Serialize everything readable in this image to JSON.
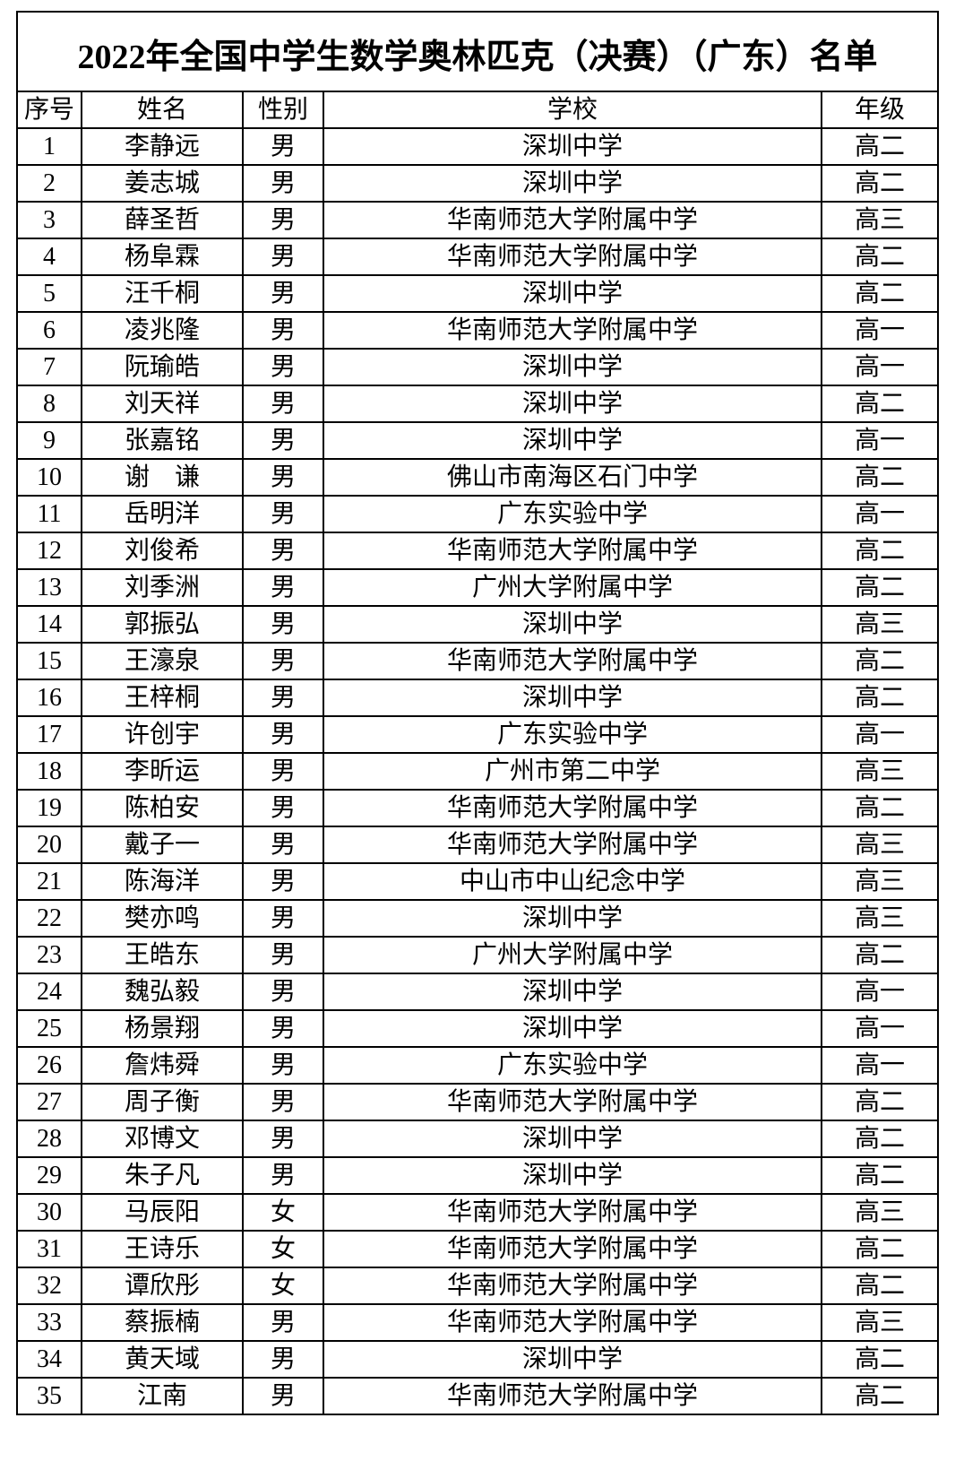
{
  "title": "2022年全国中学生数学奥林匹克（决赛）（广东）名单",
  "columns": [
    "序号",
    "姓名",
    "性别",
    "学校",
    "年级"
  ],
  "rows": [
    [
      "1",
      "李静远",
      "男",
      "深圳中学",
      "高二"
    ],
    [
      "2",
      "姜志城",
      "男",
      "深圳中学",
      "高二"
    ],
    [
      "3",
      "薛圣哲",
      "男",
      "华南师范大学附属中学",
      "高三"
    ],
    [
      "4",
      "杨阜霖",
      "男",
      "华南师范大学附属中学",
      "高二"
    ],
    [
      "5",
      "汪千桐",
      "男",
      "深圳中学",
      "高二"
    ],
    [
      "6",
      "凌兆隆",
      "男",
      "华南师范大学附属中学",
      "高一"
    ],
    [
      "7",
      "阮瑜皓",
      "男",
      "深圳中学",
      "高一"
    ],
    [
      "8",
      "刘天祥",
      "男",
      "深圳中学",
      "高二"
    ],
    [
      "9",
      "张嘉铭",
      "男",
      "深圳中学",
      "高一"
    ],
    [
      "10",
      "谢　谦",
      "男",
      "佛山市南海区石门中学",
      "高二"
    ],
    [
      "11",
      "岳明洋",
      "男",
      "广东实验中学",
      "高一"
    ],
    [
      "12",
      "刘俊希",
      "男",
      "华南师范大学附属中学",
      "高二"
    ],
    [
      "13",
      "刘季洲",
      "男",
      "广州大学附属中学",
      "高二"
    ],
    [
      "14",
      "郭振弘",
      "男",
      "深圳中学",
      "高三"
    ],
    [
      "15",
      "王濠泉",
      "男",
      "华南师范大学附属中学",
      "高二"
    ],
    [
      "16",
      "王梓桐",
      "男",
      "深圳中学",
      "高二"
    ],
    [
      "17",
      "许创宇",
      "男",
      "广东实验中学",
      "高一"
    ],
    [
      "18",
      "李昕运",
      "男",
      "广州市第二中学",
      "高三"
    ],
    [
      "19",
      "陈柏安",
      "男",
      "华南师范大学附属中学",
      "高二"
    ],
    [
      "20",
      "戴子一",
      "男",
      "华南师范大学附属中学",
      "高三"
    ],
    [
      "21",
      "陈海洋",
      "男",
      "中山市中山纪念中学",
      "高三"
    ],
    [
      "22",
      "樊亦鸣",
      "男",
      "深圳中学",
      "高三"
    ],
    [
      "23",
      "王皓东",
      "男",
      "广州大学附属中学",
      "高二"
    ],
    [
      "24",
      "魏弘毅",
      "男",
      "深圳中学",
      "高一"
    ],
    [
      "25",
      "杨景翔",
      "男",
      "深圳中学",
      "高一"
    ],
    [
      "26",
      "詹炜舜",
      "男",
      "广东实验中学",
      "高一"
    ],
    [
      "27",
      "周子衡",
      "男",
      "华南师范大学附属中学",
      "高二"
    ],
    [
      "28",
      "邓博文",
      "男",
      "深圳中学",
      "高二"
    ],
    [
      "29",
      "朱子凡",
      "男",
      "深圳中学",
      "高二"
    ],
    [
      "30",
      "马辰阳",
      "女",
      "华南师范大学附属中学",
      "高三"
    ],
    [
      "31",
      "王诗乐",
      "女",
      "华南师范大学附属中学",
      "高二"
    ],
    [
      "32",
      "谭欣彤",
      "女",
      "华南师范大学附属中学",
      "高二"
    ],
    [
      "33",
      "蔡振楠",
      "男",
      "华南师范大学附属中学",
      "高三"
    ],
    [
      "34",
      "黄天域",
      "男",
      "深圳中学",
      "高二"
    ],
    [
      "35",
      "江南",
      "男",
      "华南师范大学附属中学",
      "高二"
    ]
  ]
}
